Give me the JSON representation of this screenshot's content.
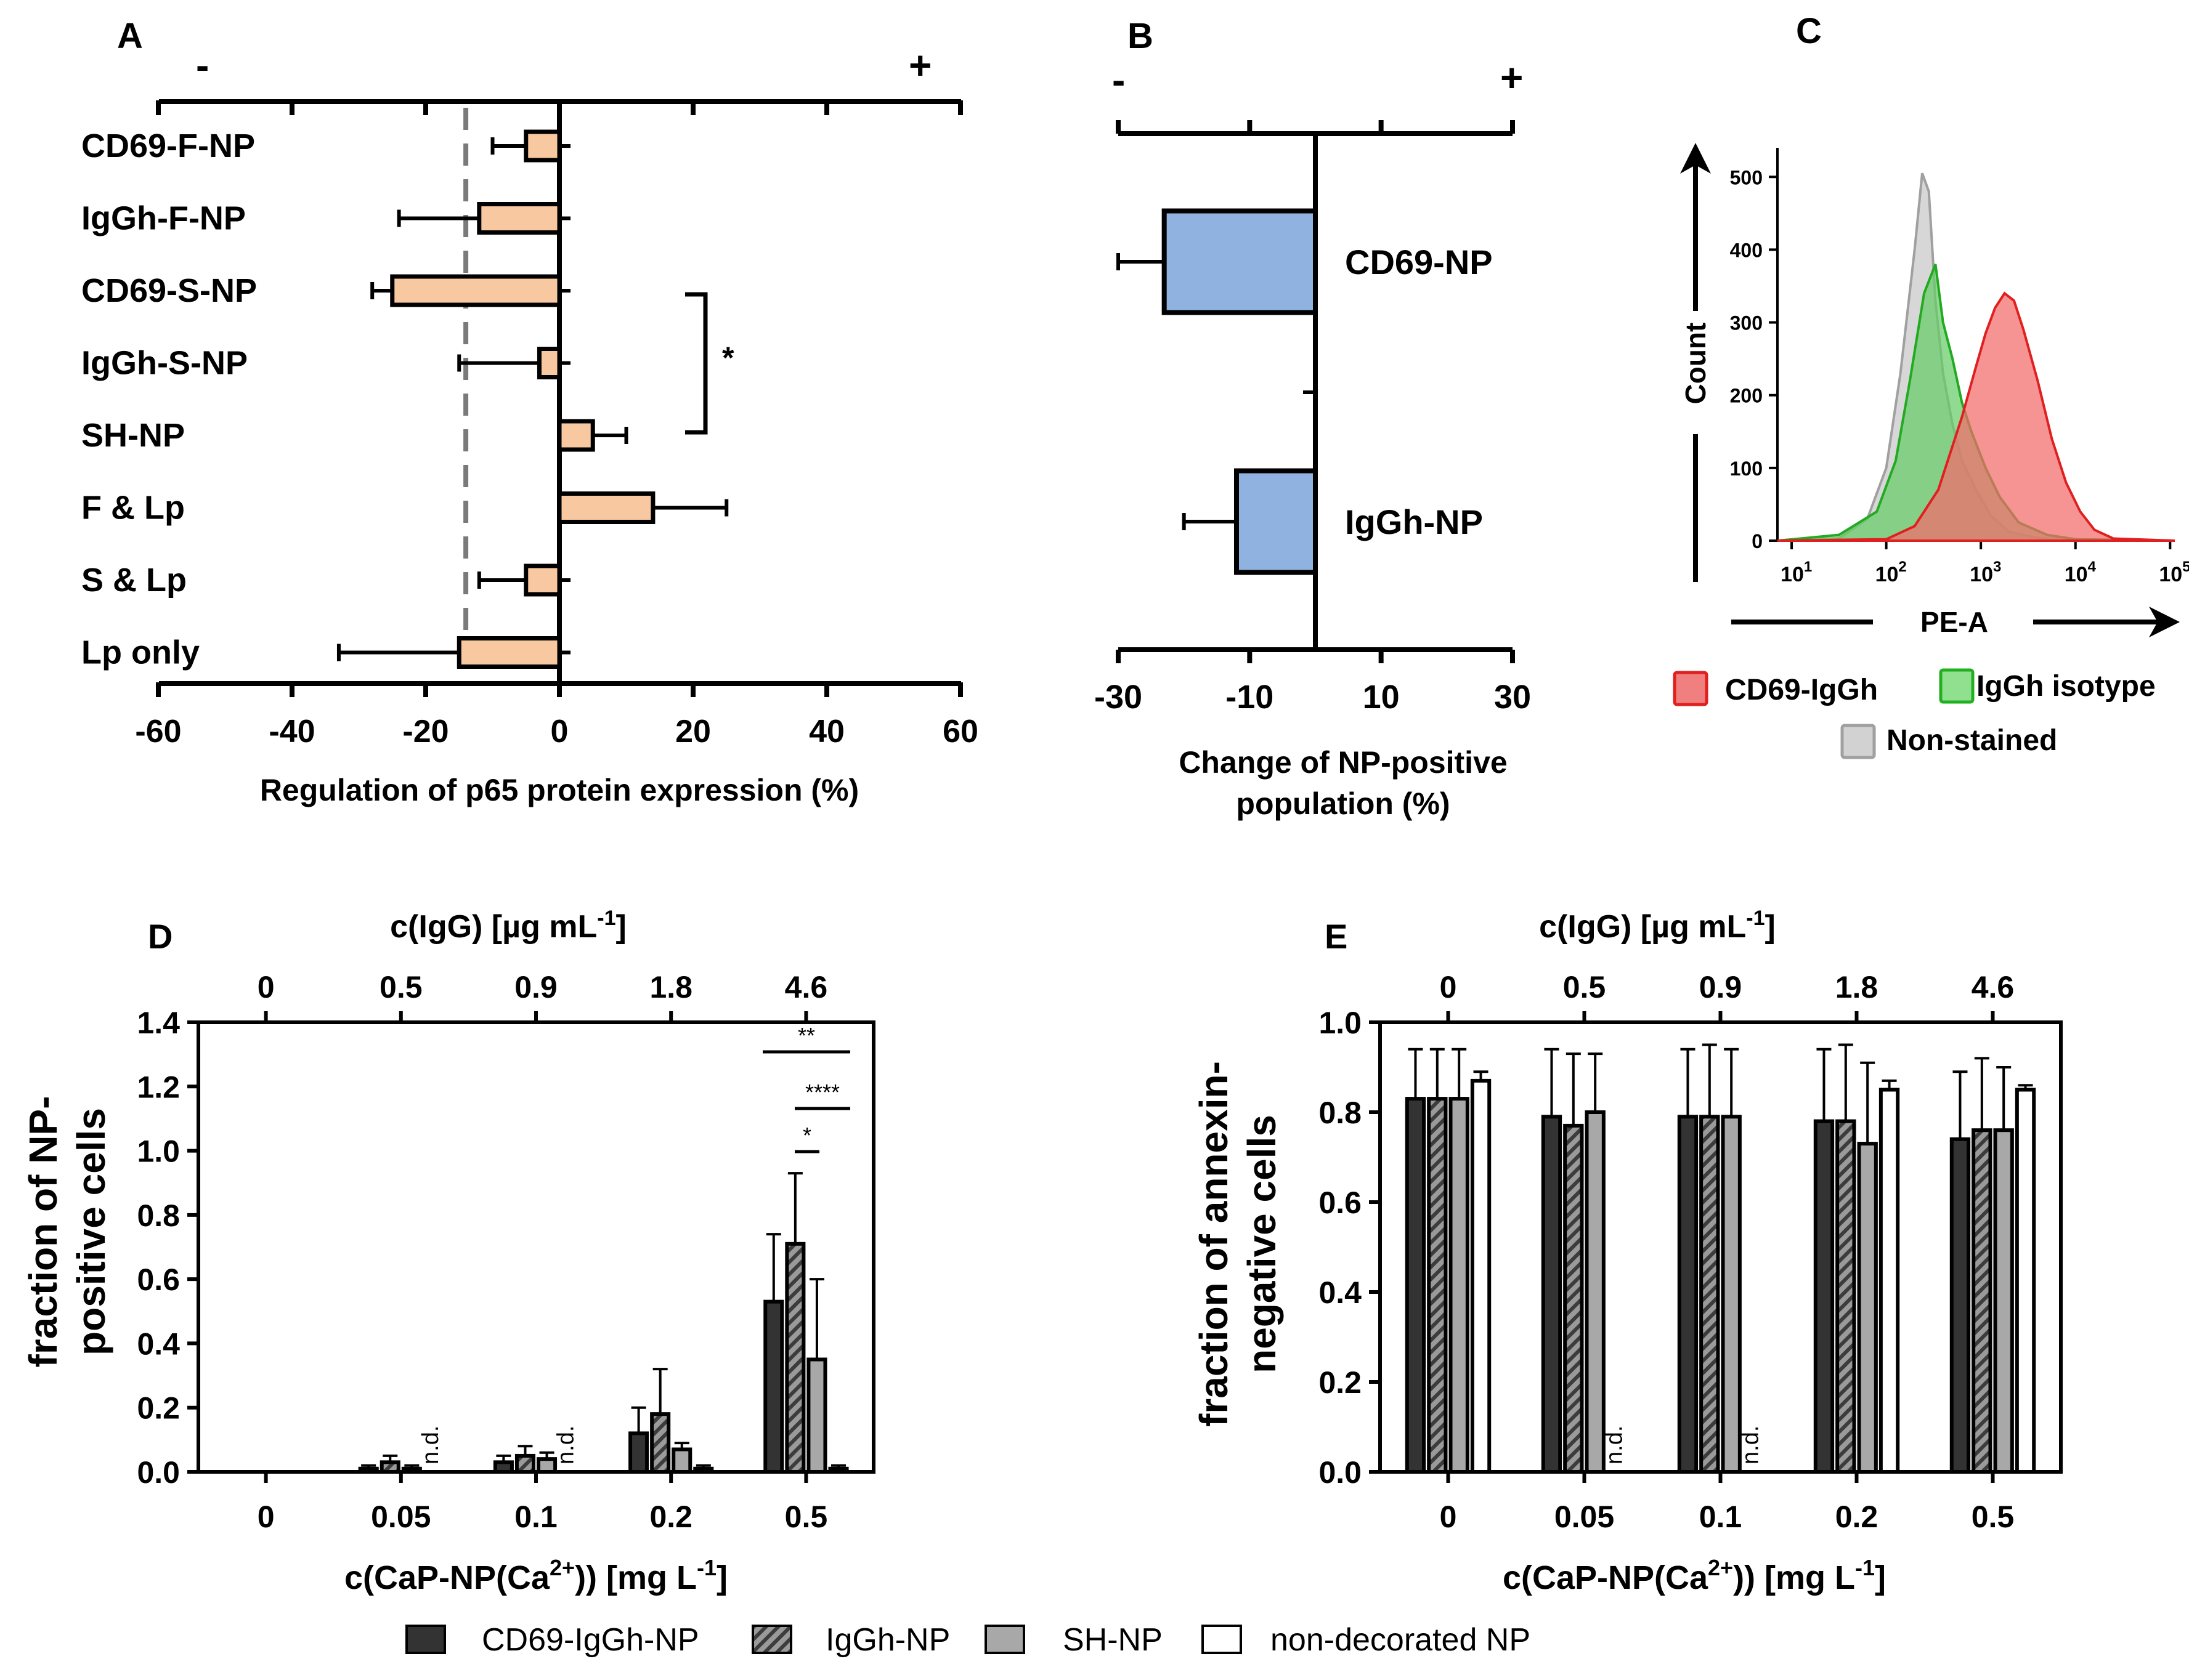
{
  "colors": {
    "panelA_bar": "#f8c9a0",
    "panelB_bar": "#8fb2e0",
    "cd69_hist": "#f06a6a",
    "isotype_hist": "#6cc96c",
    "nonstained_hist": "#bdbdbd",
    "cd69_bar": "#333333",
    "igg_bar": "#9a9a9a",
    "sh_bar": "#a8a8a8",
    "nondec_bar": "#ffffff"
  },
  "chart_data": [
    {
      "panel": "A",
      "type": "bar",
      "orientation": "horizontal",
      "panel_label": "A",
      "minus_sign": "-",
      "plus_sign": "+",
      "categories": [
        "CD69-F-NP",
        "IgGh-F-NP",
        "CD69-S-NP",
        "IgGh-S-NP",
        "SH-NP",
        "F & Lp",
        "S & Lp",
        "Lp only"
      ],
      "values": [
        -5,
        -12,
        -25,
        -3,
        5,
        14,
        -5,
        -15
      ],
      "errors": [
        5,
        12,
        3,
        12,
        5,
        11,
        7,
        18
      ],
      "xlim": [
        -60,
        60
      ],
      "xticks": [
        "-60",
        "-40",
        "-20",
        "0",
        "20",
        "40",
        "60"
      ],
      "xlabel": "Regulation of p65 protein expression (%)",
      "reference_line": -14,
      "significance": "*"
    },
    {
      "panel": "B",
      "type": "bar",
      "orientation": "horizontal",
      "panel_label": "B",
      "minus_sign": "-",
      "plus_sign": "+",
      "categories": [
        "CD69-NP",
        "IgGh-NP"
      ],
      "values": [
        -23,
        -12
      ],
      "errors": [
        7,
        8
      ],
      "xlim": [
        -30,
        30
      ],
      "xticks": [
        "-30",
        "-10",
        "10",
        "30"
      ],
      "xlabel_line1": "Change of NP-positive",
      "xlabel_line2": "population (%)"
    },
    {
      "panel": "C",
      "type": "area",
      "panel_label": "C",
      "ylabel": "Count",
      "xlabel": "PE-A",
      "yticks": [
        "0",
        "100",
        "200",
        "300",
        "400",
        "500"
      ],
      "ylim": [
        0,
        540
      ],
      "xticks_exp": [
        "1",
        "2",
        "3",
        "4",
        "5"
      ],
      "x_tick_base": "10",
      "xlim_log10": [
        0.85,
        5.05
      ],
      "series": [
        {
          "name": "Non-stained",
          "x_log10": [
            0.85,
            1.5,
            1.8,
            2.0,
            2.15,
            2.3,
            2.38,
            2.45,
            2.52,
            2.6,
            2.7,
            2.8,
            2.95,
            3.1,
            3.3,
            3.6,
            4.0,
            5.05
          ],
          "y": [
            0,
            3,
            30,
            100,
            230,
            400,
            505,
            480,
            330,
            230,
            160,
            110,
            70,
            35,
            12,
            4,
            0,
            0
          ]
        },
        {
          "name": "IgGh isotype",
          "x_log10": [
            0.85,
            1.5,
            1.9,
            2.1,
            2.25,
            2.4,
            2.52,
            2.6,
            2.7,
            2.8,
            2.9,
            3.05,
            3.2,
            3.4,
            3.7,
            4.0,
            5.05
          ],
          "y": [
            0,
            8,
            40,
            110,
            220,
            340,
            380,
            300,
            250,
            190,
            150,
            100,
            60,
            25,
            8,
            2,
            0
          ]
        },
        {
          "name": "CD69-IgGh",
          "x_log10": [
            0.85,
            2.0,
            2.3,
            2.55,
            2.8,
            2.95,
            3.05,
            3.15,
            3.25,
            3.35,
            3.45,
            3.6,
            3.75,
            3.9,
            4.05,
            4.2,
            4.4,
            5.05
          ],
          "y": [
            0,
            2,
            20,
            70,
            170,
            240,
            285,
            320,
            340,
            330,
            290,
            220,
            140,
            80,
            40,
            15,
            3,
            0
          ]
        }
      ],
      "legend": [
        "CD69-IgGh",
        "IgGh isotype",
        "Non-stained"
      ]
    },
    {
      "panel": "D",
      "type": "bar",
      "panel_label": "D",
      "top_axis_title": "c(IgG) [µg mL",
      "top_axis_title_sup": "-1",
      "top_axis_title_end": "]",
      "top_ticks": [
        "0",
        "0.5",
        "0.9",
        "1.8",
        "4.6"
      ],
      "categories": [
        "0",
        "0.05",
        "0.1",
        "0.2",
        "0.5"
      ],
      "xlabel_prefix": "c(CaP-NP(Ca",
      "xlabel_sup1": "2+",
      "xlabel_mid": ")) [mg L",
      "xlabel_sup2": "-1",
      "xlabel_end": "]",
      "ylabel_line1": "fraction of NP-",
      "ylabel_line2": "positive cells",
      "ylim": [
        0,
        1.4
      ],
      "yticks": [
        "0.0",
        "0.2",
        "0.4",
        "0.6",
        "0.8",
        "1.0",
        "1.2",
        "1.4"
      ],
      "series": [
        {
          "name": "CD69-IgGh-NP",
          "values": [
            0.0,
            0.01,
            0.03,
            0.12,
            0.53
          ],
          "errors": [
            0.0,
            0.01,
            0.02,
            0.08,
            0.21
          ]
        },
        {
          "name": "IgGh-NP",
          "values": [
            0.0,
            0.03,
            0.05,
            0.18,
            0.71
          ],
          "errors": [
            0.0,
            0.02,
            0.03,
            0.14,
            0.22
          ]
        },
        {
          "name": "SH-NP",
          "values": [
            0.0,
            0.01,
            0.04,
            0.07,
            0.35
          ],
          "errors": [
            0.0,
            0.01,
            0.02,
            0.02,
            0.25
          ]
        },
        {
          "name": "non-decorated NP",
          "values": [
            0.0,
            null,
            null,
            0.01,
            0.01
          ],
          "errors": [
            0.0,
            null,
            null,
            0.01,
            0.01
          ]
        }
      ],
      "not_determined_label": "n.d.",
      "significance": [
        "**",
        "****",
        "*"
      ]
    },
    {
      "panel": "E",
      "type": "bar",
      "panel_label": "E",
      "top_axis_title": "c(IgG) [µg mL",
      "top_axis_title_sup": "-1",
      "top_axis_title_end": "]",
      "top_ticks": [
        "0",
        "0.5",
        "0.9",
        "1.8",
        "4.6"
      ],
      "categories": [
        "0",
        "0.05",
        "0.1",
        "0.2",
        "0.5"
      ],
      "xlabel_prefix": "c(CaP-NP(Ca",
      "xlabel_sup1": "2+",
      "xlabel_mid": ")) [mg L",
      "xlabel_sup2": "-1",
      "xlabel_end": "]",
      "ylabel_line1": "fraction of annexin-",
      "ylabel_line2": "negative cells",
      "ylim": [
        0,
        1.0
      ],
      "yticks": [
        "0.0",
        "0.2",
        "0.4",
        "0.6",
        "0.8",
        "1.0"
      ],
      "series": [
        {
          "name": "CD69-IgGh-NP",
          "values": [
            0.83,
            0.79,
            0.79,
            0.78,
            0.74
          ],
          "errors": [
            0.11,
            0.15,
            0.15,
            0.16,
            0.15
          ]
        },
        {
          "name": "IgGh-NP",
          "values": [
            0.83,
            0.77,
            0.79,
            0.78,
            0.76
          ],
          "errors": [
            0.11,
            0.16,
            0.16,
            0.17,
            0.16
          ]
        },
        {
          "name": "SH-NP",
          "values": [
            0.83,
            0.8,
            0.79,
            0.73,
            0.76
          ],
          "errors": [
            0.11,
            0.13,
            0.15,
            0.18,
            0.14
          ]
        },
        {
          "name": "non-decorated NP",
          "values": [
            0.87,
            null,
            null,
            0.85,
            0.85
          ],
          "errors": [
            0.02,
            null,
            null,
            0.02,
            0.01
          ]
        }
      ],
      "not_determined_label": "n.d."
    }
  ],
  "legend": {
    "items": [
      "CD69-IgGh-NP",
      "IgGh-NP",
      "SH-NP",
      "non-decorated NP"
    ]
  }
}
